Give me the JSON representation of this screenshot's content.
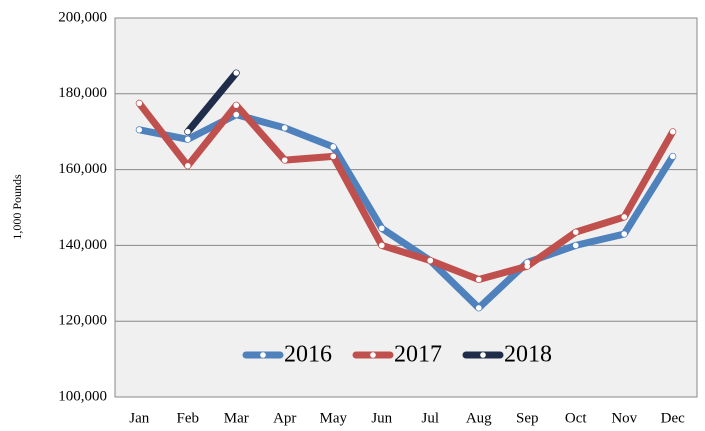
{
  "chart_data": {
    "type": "line",
    "y_label": "1,000 Pounds",
    "categories": [
      "Jan",
      "Feb",
      "Mar",
      "Apr",
      "May",
      "Jun",
      "Jul",
      "Aug",
      "Sep",
      "Oct",
      "Nov",
      "Dec"
    ],
    "series": [
      {
        "name": "2016",
        "color": "#4f81bd",
        "values": [
          170500,
          168000,
          174500,
          171000,
          166000,
          144500,
          136000,
          123500,
          135500,
          140000,
          143000,
          163500
        ]
      },
      {
        "name": "2017",
        "color": "#c0504d",
        "values": [
          177500,
          161000,
          177000,
          162500,
          163500,
          140000,
          136000,
          131000,
          134500,
          143500,
          147500,
          170000
        ]
      },
      {
        "name": "2018",
        "color": "#1f2d4a",
        "values": [
          null,
          170000,
          185500,
          null,
          null,
          null,
          null,
          null,
          null,
          null,
          null,
          null
        ]
      }
    ],
    "ylim": [
      100000,
      200000
    ],
    "yticks": [
      {
        "value": 100000,
        "label": "100,000"
      },
      {
        "value": 120000,
        "label": "120,000"
      },
      {
        "value": 140000,
        "label": "140,000"
      },
      {
        "value": 160000,
        "label": "160,000"
      },
      {
        "value": 180000,
        "label": "180,000"
      },
      {
        "value": 200000,
        "label": "200,000"
      }
    ],
    "grid": true,
    "legend": "bottom"
  }
}
